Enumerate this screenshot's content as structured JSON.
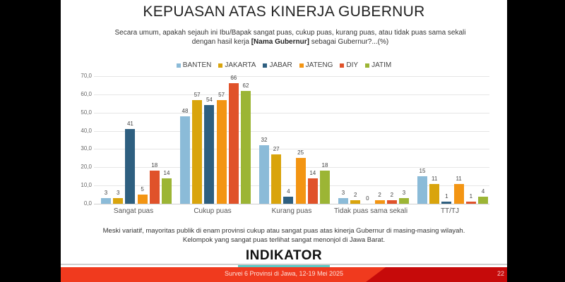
{
  "slide": {
    "title": "KEPUASAN ATAS KINERJA GUBERNUR",
    "question_part1": "Secara umum, apakah sejauh ini Ibu/Bapak sangat puas, cukup puas, kurang puas, atau tidak puas sama sekali dengan hasil kerja ",
    "question_bold": "[Nama Gubernur]",
    "question_part2": " sebagai Gubernur?...(%)",
    "summary_line1": "Meski variatif, mayoritas publik di enam provinsi cukup atau sangat puas atas kinerja Gubernur di masing-masing wilayah.",
    "summary_line2": "Kelompok yang sangat puas terlihat sangat menonjol di Jawa Barat.",
    "logo_text": "INDIKATOR",
    "footer_text": "Survei 6 Provinsi di Jawa, 12-19 Mei 2025",
    "page_number": "22"
  },
  "colors": {
    "BANTEN": "#8bbbd8",
    "JAKARTA": "#d9a40c",
    "JABAR": "#2e5f80",
    "JATENG": "#f39513",
    "DIY": "#e0522a",
    "JATIM": "#9cb535",
    "footer_red": "#f03a1e",
    "footer_dark_red": "#c60a0a",
    "logo_teal": "#5cc8c4"
  },
  "chart_data": {
    "type": "bar",
    "title": "KEPUASAN ATAS KINERJA GUBERNUR",
    "xlabel": "",
    "ylabel": "%",
    "ylim": [
      0,
      70
    ],
    "yticks": [
      "0,0",
      "10,0",
      "20,0",
      "30,0",
      "40,0",
      "50,0",
      "60,0",
      "70,0"
    ],
    "grid": true,
    "legend_position": "top",
    "categories": [
      "Sangat puas",
      "Cukup puas",
      "Kurang puas",
      "Tidak puas sama sekali",
      "TT/TJ"
    ],
    "series": [
      {
        "name": "BANTEN",
        "values": [
          3,
          48,
          32,
          3,
          15
        ]
      },
      {
        "name": "JAKARTA",
        "values": [
          3,
          57,
          27,
          2,
          11
        ]
      },
      {
        "name": "JABAR",
        "values": [
          41,
          54,
          4,
          0,
          1
        ]
      },
      {
        "name": "JATENG",
        "values": [
          5,
          57,
          25,
          2,
          11
        ]
      },
      {
        "name": "DIY",
        "values": [
          18,
          66,
          14,
          2,
          1
        ]
      },
      {
        "name": "JATIM",
        "values": [
          14,
          62,
          18,
          3,
          4
        ]
      }
    ]
  }
}
